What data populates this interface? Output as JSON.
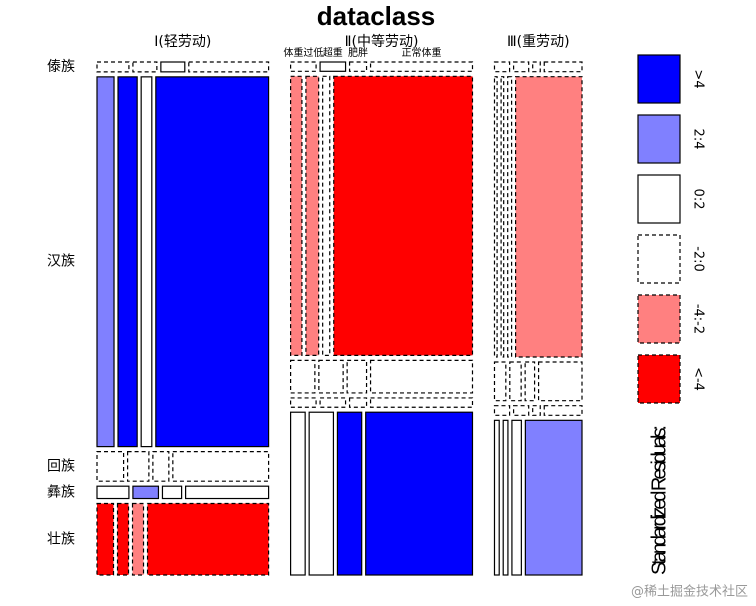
{
  "chart_data": {
    "type": "mosaic",
    "title": "dataclass",
    "columns": [
      "Ⅰ(轻劳动)",
      "Ⅱ(中等劳动)",
      "Ⅲ(重劳动)"
    ],
    "rows": [
      "傣族",
      "汉族",
      "回族",
      "彝族",
      "壮族"
    ],
    "tiles": [
      "体重过低",
      "超重",
      "肥胖",
      "正常体重"
    ],
    "counts": [
      [
        [
          4,
          3,
          3,
          10
        ],
        [
          80,
          90,
          50,
          530
        ],
        [
          10,
          8,
          6,
          36
        ],
        [
          5,
          4,
          3,
          13
        ],
        [
          15,
          10,
          10,
          110
        ]
      ],
      [
        [
          3,
          3,
          2,
          12
        ],
        [
          40,
          45,
          25,
          490
        ],
        [
          10,
          10,
          8,
          42
        ],
        [
          3,
          3,
          2,
          12
        ],
        [
          30,
          50,
          50,
          220
        ]
      ],
      [
        [
          2,
          2,
          1,
          5
        ],
        [
          10,
          10,
          15,
          255
        ],
        [
          6,
          6,
          5,
          23
        ],
        [
          2,
          2,
          1,
          5
        ],
        [
          10,
          10,
          20,
          120
        ]
      ]
    ],
    "residuals": [
      [
        [
          -1,
          -1,
          1,
          -1
        ],
        [
          3,
          5,
          1,
          8
        ],
        [
          -1,
          -1,
          -1,
          -1
        ],
        [
          1,
          3,
          1,
          1
        ],
        [
          -5,
          -5,
          -3,
          -6
        ]
      ],
      [
        [
          -1,
          1,
          -1,
          -1
        ],
        [
          -3,
          -3,
          -1,
          -5
        ],
        [
          -1,
          -1,
          -1,
          -1
        ],
        [
          -1,
          -1,
          -1,
          -1
        ],
        [
          1,
          1,
          5,
          6
        ]
      ],
      [
        [
          -1,
          -1,
          -1,
          -1
        ],
        [
          -1,
          -1,
          -1,
          -3
        ],
        [
          -1,
          -1,
          -1,
          -1
        ],
        [
          -1,
          -1,
          -1,
          -1
        ],
        [
          1,
          1,
          0.5,
          3
        ]
      ]
    ],
    "breaks": [
      4,
      2,
      0,
      -2,
      -4
    ],
    "legend": [
      {
        "label": ">4",
        "color": "#0000ff",
        "dashed": false
      },
      {
        "label": "2:4",
        "color": "#8080ff",
        "dashed": false
      },
      {
        "label": "0:2",
        "color": "#ffffff",
        "dashed": false
      },
      {
        "label": "-2:0",
        "color": "#ffffff",
        "dashed": true
      },
      {
        "label": "-4:-2",
        "color": "#ff8080",
        "dashed": true
      },
      {
        "label": "<-4",
        "color": "#ff0000",
        "dashed": true
      }
    ],
    "legend_title": "Standardized Residuals:",
    "watermark": "@稀土掘金技术社区"
  }
}
